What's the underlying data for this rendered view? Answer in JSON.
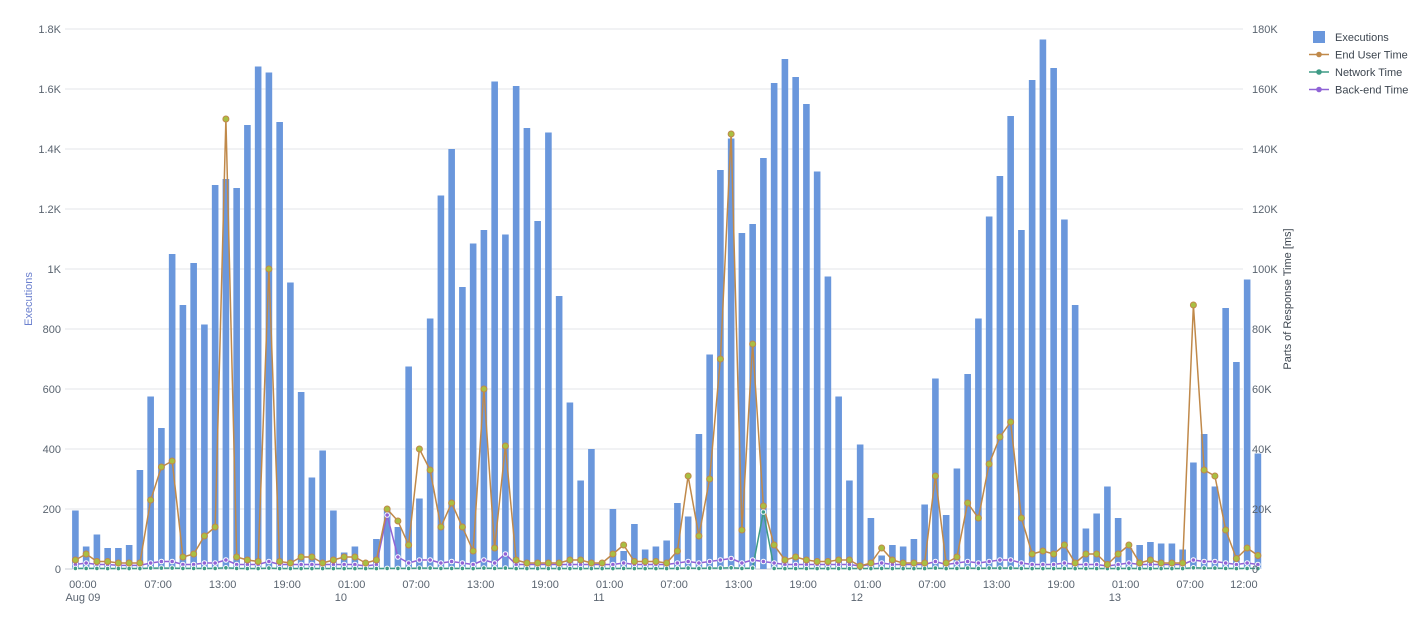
{
  "colors": {
    "executions": "#6a97dc",
    "end_user_time": "#c0894a",
    "network_time": "#3f9b86",
    "backend_time": "#8f63d6",
    "marker_fill": "#a9bf42",
    "grid": "#e3e6ea",
    "left_axis_title": "#6a7fce",
    "right_axis_title": "#3d4650"
  },
  "chart_data": {
    "type": "bar",
    "title": "",
    "left_axis": {
      "title": "Executions",
      "range": [
        0,
        1800
      ],
      "tick_labels": [
        "0",
        "200",
        "400",
        "600",
        "800",
        "1K",
        "1.2K",
        "1.4K",
        "1.6K",
        "1.8K"
      ]
    },
    "right_axis": {
      "title": "Parts of Response Time [ms]",
      "range": [
        0,
        180000
      ],
      "tick_labels": [
        "0",
        "20K",
        "40K",
        "60K",
        "80K",
        "100K",
        "120K",
        "140K",
        "160K",
        "180K"
      ]
    },
    "x_axis": {
      "range": [
        "Aug 09 00:00",
        "Aug 13 13:00"
      ],
      "interval": "1 hour",
      "time_labels": [
        "00:00",
        "07:00",
        "13:00",
        "19:00",
        "01:00",
        "07:00",
        "13:00",
        "19:00",
        "01:00",
        "07:00",
        "13:00",
        "19:00",
        "01:00",
        "07:00",
        "13:00",
        "19:00",
        "01:00",
        "07:00",
        "12:00"
      ],
      "date_labels": [
        "Aug 09",
        "10",
        "11",
        "12",
        "13"
      ]
    },
    "grid": true,
    "legend_position": "top-right",
    "series": [
      {
        "name": "Executions",
        "type": "bar",
        "axis": "left",
        "values": [
          195,
          75,
          115,
          70,
          70,
          80,
          330,
          575,
          470,
          1050,
          880,
          1020,
          815,
          1280,
          1300,
          1270,
          1480,
          1675,
          1655,
          1490,
          955,
          590,
          305,
          395,
          195,
          55,
          75,
          20,
          100,
          200,
          140,
          675,
          235,
          835,
          1245,
          1400,
          940,
          1085,
          1130,
          1625,
          1115,
          1610,
          1470,
          1160,
          1455,
          910,
          555,
          295,
          400,
          20,
          200,
          60,
          150,
          65,
          75,
          95,
          220,
          175,
          450,
          715,
          1330,
          1435,
          1120,
          1150,
          1370,
          1620,
          1700,
          1640,
          1550,
          1325,
          975,
          575,
          295,
          415,
          170,
          45,
          80,
          75,
          100,
          215,
          635,
          180,
          335,
          650,
          835,
          1175,
          1310,
          1510,
          1130,
          1630,
          1765,
          1670,
          1165,
          880,
          135,
          185,
          275,
          170,
          70,
          80,
          90,
          85,
          85,
          65,
          355,
          450,
          275,
          870,
          690,
          965,
          385
        ]
      },
      {
        "name": "End User Time",
        "type": "line",
        "axis": "right",
        "values": [
          3000,
          5000,
          2500,
          2500,
          2000,
          2000,
          2000,
          23000,
          34000,
          36000,
          4000,
          5000,
          11000,
          14000,
          150000,
          4000,
          3000,
          2500,
          100000,
          2500,
          2000,
          4000,
          4000,
          2000,
          3000,
          4000,
          4000,
          2000,
          3000,
          20000,
          16000,
          8000,
          40000,
          33000,
          14000,
          22000,
          14000,
          6000,
          60000,
          7000,
          41000,
          3000,
          2000,
          2000,
          2000,
          2000,
          3000,
          3000,
          2000,
          2000,
          5000,
          8000,
          2500,
          2500,
          2500,
          2000,
          6000,
          31000,
          11000,
          30000,
          70000,
          145000,
          13000,
          75000,
          21000,
          8000,
          3000,
          4000,
          3000,
          2500,
          2500,
          3000,
          3000,
          1000,
          2000,
          7000,
          3000,
          2000,
          2000,
          2000,
          31000,
          2000,
          4000,
          22000,
          17000,
          35000,
          44000,
          49000,
          17000,
          5000,
          6000,
          5000,
          8000,
          2000,
          5000,
          5000,
          1500,
          5000,
          8000,
          2000,
          3000,
          2000,
          2000,
          2000,
          88000,
          33000,
          31000,
          13000,
          3500,
          7000,
          4500
        ]
      },
      {
        "name": "Network Time",
        "type": "line",
        "axis": "right",
        "values": [
          200,
          200,
          200,
          150,
          150,
          150,
          150,
          300,
          300,
          300,
          200,
          200,
          200,
          200,
          400,
          200,
          150,
          150,
          300,
          150,
          150,
          150,
          150,
          150,
          150,
          150,
          150,
          150,
          150,
          200,
          200,
          200,
          300,
          300,
          200,
          200,
          200,
          150,
          300,
          200,
          300,
          150,
          150,
          150,
          150,
          150,
          150,
          150,
          150,
          150,
          150,
          200,
          150,
          150,
          150,
          150,
          200,
          300,
          200,
          300,
          300,
          400,
          200,
          300,
          19000,
          200,
          150,
          150,
          150,
          150,
          150,
          150,
          150,
          150,
          150,
          200,
          150,
          150,
          150,
          150,
          300,
          150,
          200,
          300,
          200,
          300,
          300,
          300,
          200,
          150,
          150,
          150,
          200,
          150,
          150,
          150,
          150,
          150,
          200,
          150,
          150,
          150,
          150,
          150,
          400,
          300,
          300,
          200,
          150,
          200,
          150
        ]
      },
      {
        "name": "Back-end Time",
        "type": "line",
        "axis": "right",
        "values": [
          1500,
          2000,
          1500,
          1500,
          1200,
          1200,
          1200,
          2000,
          2500,
          2500,
          1500,
          1500,
          2000,
          2000,
          3000,
          1500,
          1500,
          1500,
          2500,
          1500,
          1500,
          1500,
          1500,
          1500,
          1500,
          1500,
          1500,
          1000,
          1500,
          18000,
          4000,
          2000,
          3000,
          3000,
          2000,
          2500,
          2000,
          1500,
          3000,
          2000,
          5000,
          1500,
          1500,
          1500,
          1500,
          1500,
          1500,
          1500,
          1500,
          1500,
          1500,
          2000,
          1500,
          1500,
          1500,
          1500,
          2000,
          2500,
          2000,
          2500,
          3000,
          3500,
          2000,
          3000,
          2500,
          2000,
          1500,
          1500,
          1500,
          1500,
          1500,
          1500,
          1500,
          1000,
          1500,
          2000,
          1500,
          1500,
          1500,
          1500,
          2500,
          1500,
          2000,
          2500,
          2000,
          2500,
          3000,
          3000,
          2000,
          1500,
          1500,
          1500,
          2000,
          1500,
          1500,
          1500,
          1000,
          1500,
          2000,
          1500,
          1500,
          1500,
          1500,
          1500,
          3000,
          2500,
          2500,
          2000,
          1500,
          2000,
          1500
        ]
      }
    ]
  }
}
